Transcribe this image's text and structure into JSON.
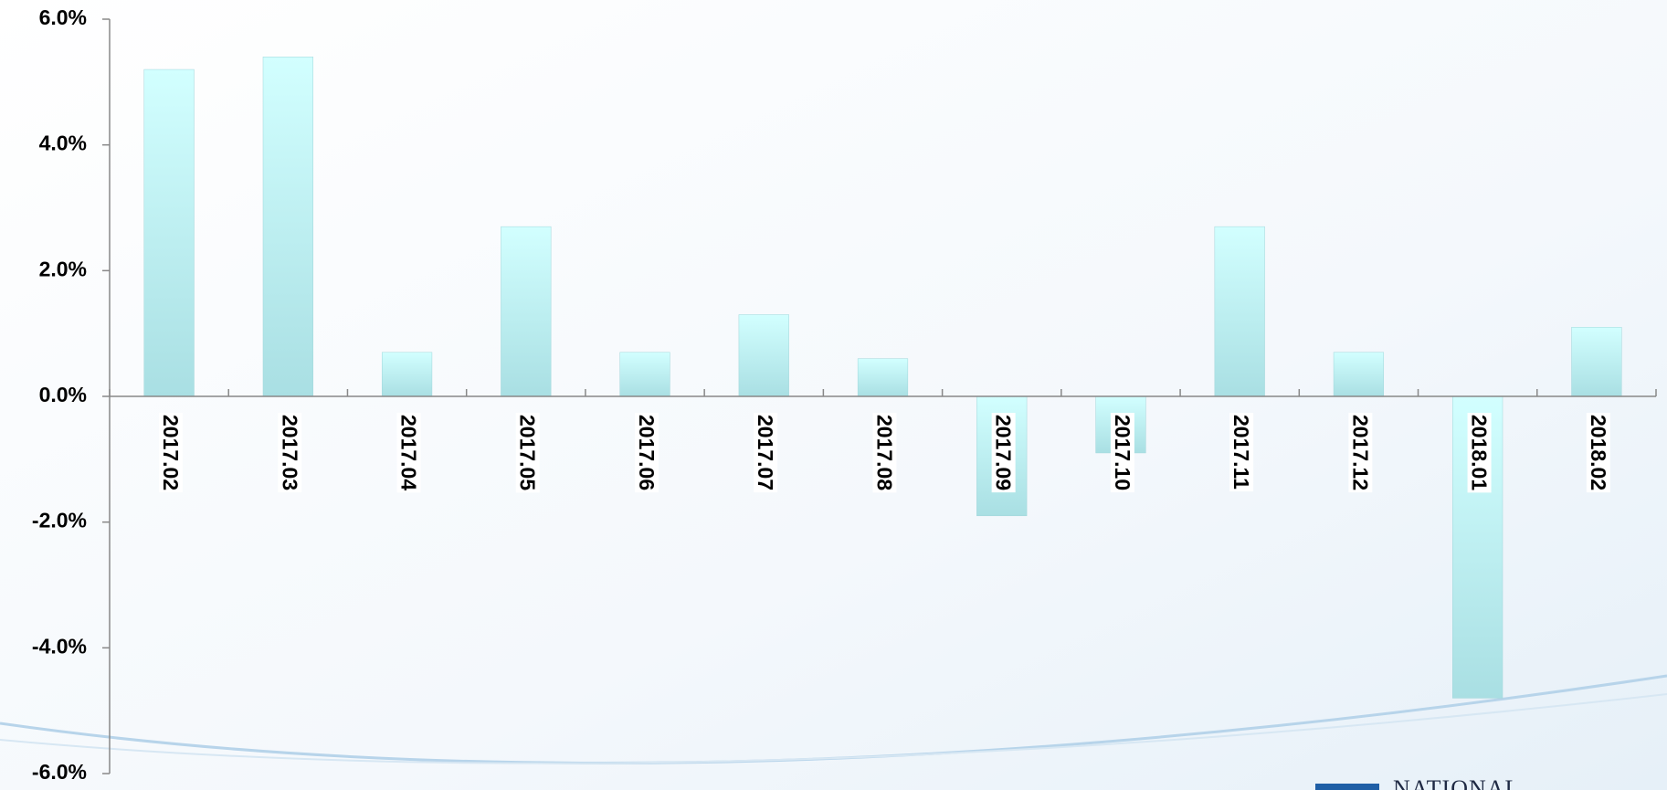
{
  "chart_data": {
    "type": "bar",
    "categories": [
      "2017.02",
      "2017.03",
      "2017.04",
      "2017.05",
      "2017.06",
      "2017.07",
      "2017.08",
      "2017.09",
      "2017.10",
      "2017.11",
      "2017.12",
      "2018.01",
      "2018.02"
    ],
    "values": [
      5.2,
      5.4,
      0.7,
      2.7,
      0.7,
      1.3,
      0.6,
      -1.9,
      -0.9,
      2.7,
      0.7,
      -4.8,
      1.1
    ],
    "ylim": [
      -6,
      6
    ],
    "yticks": [
      {
        "value": -6,
        "label": "-6.0%"
      },
      {
        "value": -4,
        "label": "-4.0%"
      },
      {
        "value": -2,
        "label": "-2.0%"
      },
      {
        "value": 0,
        "label": "0.0%"
      },
      {
        "value": 2,
        "label": "2.0%"
      },
      {
        "value": 4,
        "label": "4.0%"
      },
      {
        "value": 6,
        "label": "6.0%"
      }
    ],
    "color": "#b4ecef",
    "grid": false
  },
  "logo_text": "NATIONAL"
}
